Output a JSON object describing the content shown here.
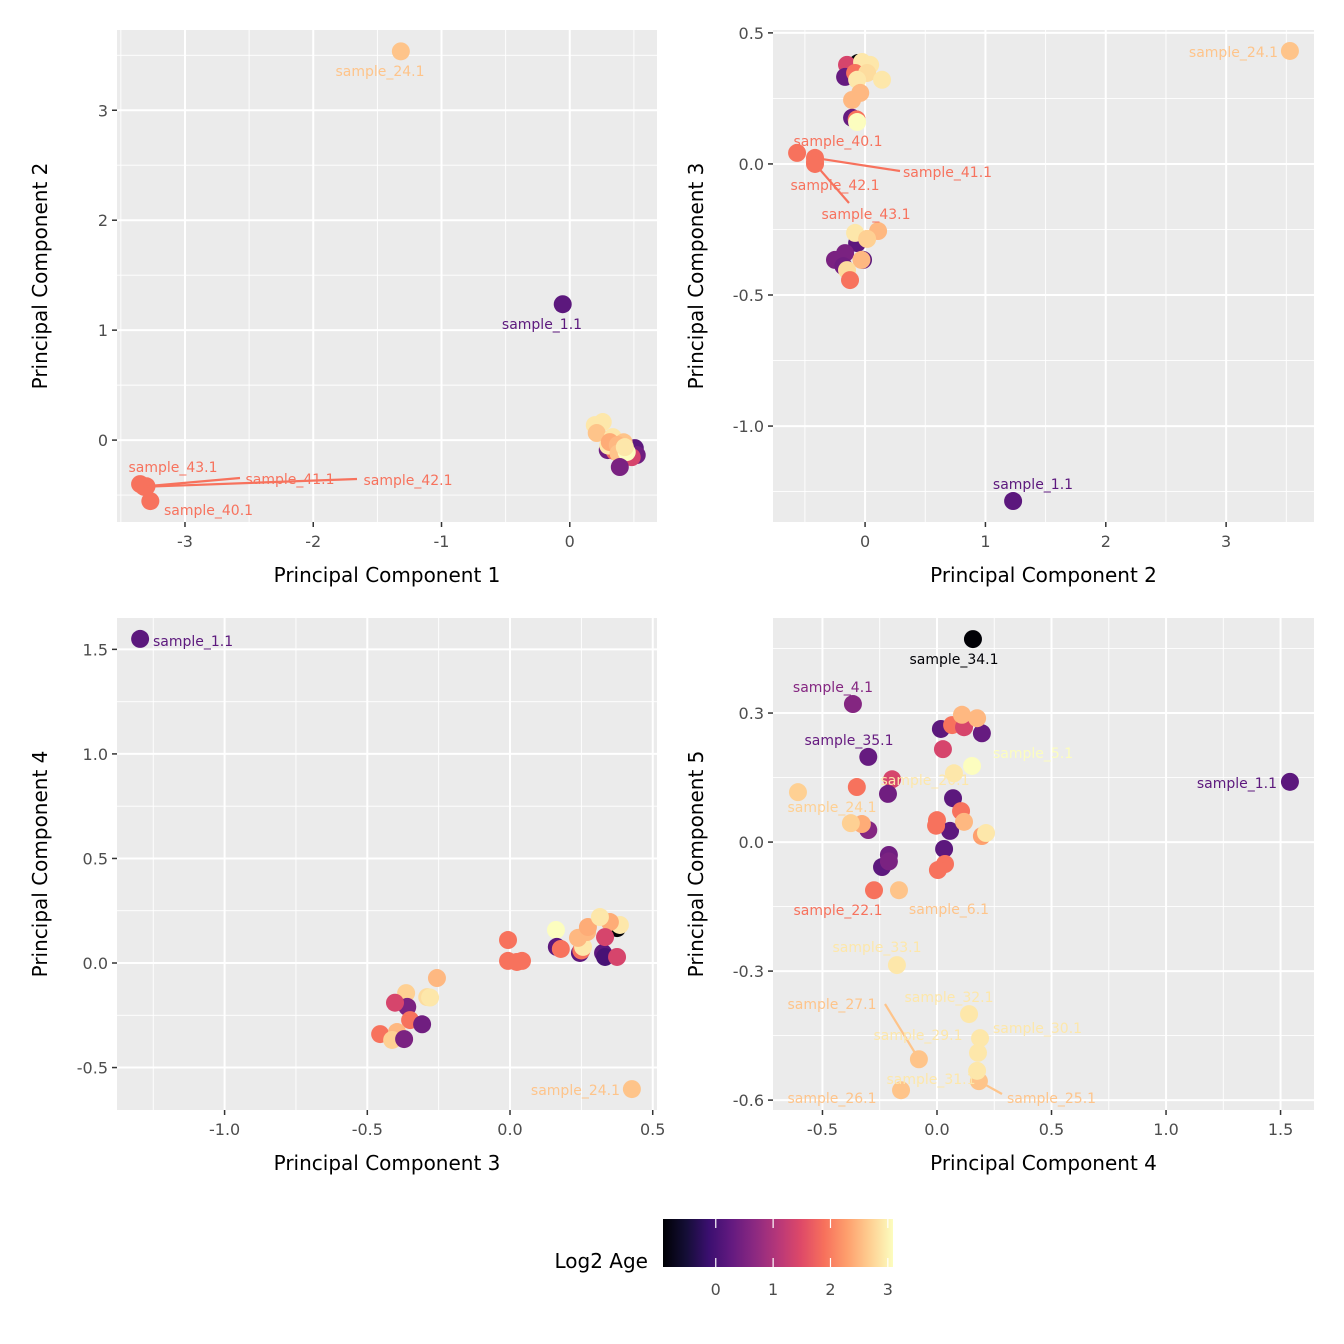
{
  "chart_data": [
    {
      "type": "scatter",
      "xlabel": "Principal Component 1",
      "ylabel": "Principal Component 2",
      "xlim": [
        -3.53,
        0.68
      ],
      "ylim": [
        -0.745,
        3.73
      ],
      "xticks": [
        -3,
        -2,
        -1,
        0
      ],
      "xtick_labels": [
        "-3",
        "-2",
        "-1",
        "0"
      ],
      "yticks": [
        0,
        1,
        2,
        3
      ],
      "ytick_labels": [
        "0",
        "1",
        "2",
        "3"
      ],
      "grid": true,
      "points": [
        {
          "x": 0.195,
          "y": 0.136,
          "age": 2.9
        },
        {
          "x": 0.257,
          "y": 0.164,
          "age": 2.9
        },
        {
          "x": 0.21,
          "y": 0.064,
          "age": 2.6
        },
        {
          "x": 0.296,
          "y": -0.091,
          "age": 0.4
        },
        {
          "x": 0.335,
          "y": 0.027,
          "age": 2.9
        },
        {
          "x": 0.507,
          "y": -0.073,
          "age": 0.2
        },
        {
          "x": 0.45,
          "y": -0.15,
          "age": 0.2
        },
        {
          "x": 0.522,
          "y": -0.136,
          "age": 0.4
        },
        {
          "x": 0.483,
          "y": -0.155,
          "age": 1.4
        },
        {
          "x": 0.35,
          "y": -0.1,
          "age": 1.9
        },
        {
          "x": 0.3,
          "y": -0.05,
          "age": 2.9
        },
        {
          "x": 0.312,
          "y": -0.018,
          "age": 2.4
        },
        {
          "x": 0.42,
          "y": -0.02,
          "age": 2.6
        },
        {
          "x": 0.374,
          "y": -0.045,
          "age": 2.5
        },
        {
          "x": 0.38,
          "y": -0.12,
          "age": 2.6
        },
        {
          "x": 0.444,
          "y": -0.109,
          "age": 3.1
        },
        {
          "x": 0.429,
          "y": -0.064,
          "age": 2.9
        },
        {
          "x": 0.39,
          "y": -0.245,
          "age": 0.5
        },
        {
          "x": -0.055,
          "y": 1.236,
          "age": 0.2,
          "label": "sample_1.1"
        },
        {
          "x": -1.317,
          "y": 3.536,
          "age": 2.6,
          "label": "sample_24.1"
        },
        {
          "x": -3.35,
          "y": -0.4,
          "age": 1.9,
          "label": "sample_43.1"
        },
        {
          "x": -3.3,
          "y": -0.42,
          "age": 1.9,
          "label": "sample_41.1"
        },
        {
          "x": -3.32,
          "y": -0.425,
          "age": 1.9,
          "label": "sample_42.1"
        },
        {
          "x": -3.27,
          "y": -0.555,
          "age": 1.9,
          "label": "sample_40.1"
        }
      ]
    },
    {
      "type": "scatter",
      "xlabel": "Principal Component 2",
      "ylabel": "Principal Component 3",
      "xlim": [
        -0.765,
        3.73
      ],
      "ylim": [
        -1.366,
        0.511
      ],
      "xticks": [
        0,
        1,
        2,
        3
      ],
      "xtick_labels": [
        "0",
        "1",
        "2",
        "3"
      ],
      "yticks": [
        0.5,
        0.0,
        -0.5,
        -1.0
      ],
      "ytick_labels": [
        "0.5",
        "0.0",
        "-0.5",
        "-1.0"
      ],
      "grid": true,
      "points": [
        {
          "x": -0.058,
          "y": 0.385,
          "age": -0.9
        },
        {
          "x": -0.15,
          "y": 0.378,
          "age": 1.4
        },
        {
          "x": -0.025,
          "y": 0.389,
          "age": 2.9
        },
        {
          "x": 0.042,
          "y": 0.378,
          "age": 2.9
        },
        {
          "x": -0.166,
          "y": 0.332,
          "age": 0.3
        },
        {
          "x": -0.083,
          "y": 0.347,
          "age": 1.9
        },
        {
          "x": 0.017,
          "y": 0.347,
          "age": 2.8
        },
        {
          "x": 0.141,
          "y": 0.321,
          "age": 2.9
        },
        {
          "x": -0.066,
          "y": 0.321,
          "age": 2.9
        },
        {
          "x": -0.04,
          "y": 0.271,
          "age": 2.5
        },
        {
          "x": -0.108,
          "y": 0.244,
          "age": 2.5
        },
        {
          "x": -0.108,
          "y": 0.176,
          "age": 0.3
        },
        {
          "x": -0.07,
          "y": 0.17,
          "age": 1.9
        },
        {
          "x": -0.066,
          "y": 0.16,
          "age": 3.1
        },
        {
          "x": -0.066,
          "y": -0.302,
          "age": 0.2
        },
        {
          "x": -0.017,
          "y": -0.366,
          "age": 0.2
        },
        {
          "x": -0.083,
          "y": -0.263,
          "age": 2.9
        },
        {
          "x": 0.108,
          "y": -0.256,
          "age": 2.5
        },
        {
          "x": 0.017,
          "y": -0.286,
          "age": 2.7
        },
        {
          "x": -0.166,
          "y": -0.34,
          "age": 0.5
        },
        {
          "x": -0.25,
          "y": -0.366,
          "age": 0.5
        },
        {
          "x": -0.03,
          "y": -0.366,
          "age": 2.5
        },
        {
          "x": -0.18,
          "y": -0.39,
          "age": 0.4
        },
        {
          "x": -0.15,
          "y": -0.405,
          "age": 2.8
        },
        {
          "x": -0.125,
          "y": -0.443,
          "age": 1.9
        },
        {
          "x": 1.23,
          "y": -1.286,
          "age": 0.2,
          "label": "sample_1.1"
        },
        {
          "x": 3.53,
          "y": 0.431,
          "age": 2.6,
          "label": "sample_24.1"
        },
        {
          "x": -0.565,
          "y": 0.042,
          "age": 1.9,
          "label": "sample_40.1"
        },
        {
          "x": -0.416,
          "y": 0.023,
          "age": 1.9,
          "label": "sample_41.1"
        },
        {
          "x": -0.416,
          "y": 0.0,
          "age": 1.9,
          "label": "sample_43.1"
        },
        {
          "x": -0.416,
          "y": 0.008,
          "age": 1.9,
          "label": "sample_42.1"
        }
      ]
    },
    {
      "type": "scatter",
      "xlabel": "Principal Component 3",
      "ylabel": "Principal Component 4",
      "xlim": [
        -1.377,
        0.515
      ],
      "ylim": [
        -0.703,
        1.65
      ],
      "xticks": [
        -1.0,
        -0.5,
        0.0,
        0.5
      ],
      "xtick_labels": [
        "-1.0",
        "-0.5",
        "0.0",
        "0.5"
      ],
      "yticks": [
        1.5,
        1.0,
        0.5,
        0.0,
        -0.5
      ],
      "ytick_labels": [
        "1.5",
        "1.0",
        "0.5",
        "0.0",
        "-0.5"
      ],
      "grid": true,
      "points": [
        {
          "x": -0.256,
          "y": -0.072,
          "age": 2.5
        },
        {
          "x": -0.364,
          "y": -0.144,
          "age": 2.7
        },
        {
          "x": -0.29,
          "y": -0.163,
          "age": 2.8
        },
        {
          "x": -0.28,
          "y": -0.165,
          "age": 2.9
        },
        {
          "x": -0.36,
          "y": -0.21,
          "age": 0.5
        },
        {
          "x": -0.403,
          "y": -0.19,
          "age": 1.4
        },
        {
          "x": -0.35,
          "y": -0.273,
          "age": 1.9
        },
        {
          "x": -0.308,
          "y": -0.293,
          "age": 0.4
        },
        {
          "x": -0.455,
          "y": -0.34,
          "age": 1.9
        },
        {
          "x": -0.396,
          "y": -0.33,
          "age": 2.5
        },
        {
          "x": -0.413,
          "y": -0.368,
          "age": 2.7
        },
        {
          "x": -0.371,
          "y": -0.364,
          "age": 0.5
        },
        {
          "x": -0.007,
          "y": 0.11,
          "age": 1.9
        },
        {
          "x": -0.007,
          "y": 0.01,
          "age": 1.9
        },
        {
          "x": 0.024,
          "y": 0.005,
          "age": 1.9
        },
        {
          "x": 0.042,
          "y": 0.01,
          "age": 1.9
        },
        {
          "x": 0.161,
          "y": 0.158,
          "age": 3.1
        },
        {
          "x": 0.164,
          "y": 0.077,
          "age": 0.2
        },
        {
          "x": 0.178,
          "y": 0.067,
          "age": 1.9
        },
        {
          "x": 0.245,
          "y": 0.048,
          "age": 0.2
        },
        {
          "x": 0.25,
          "y": 0.06,
          "age": 1.9
        },
        {
          "x": 0.256,
          "y": 0.077,
          "age": 2.9
        },
        {
          "x": 0.375,
          "y": 0.167,
          "age": -0.9
        },
        {
          "x": 0.385,
          "y": 0.182,
          "age": 2.9
        },
        {
          "x": 0.238,
          "y": 0.12,
          "age": 2.5
        },
        {
          "x": 0.27,
          "y": 0.148,
          "age": 2.5
        },
        {
          "x": 0.273,
          "y": 0.172,
          "age": 2.4
        },
        {
          "x": 0.35,
          "y": 0.196,
          "age": 2.4
        },
        {
          "x": 0.315,
          "y": 0.22,
          "age": 2.9
        },
        {
          "x": 0.326,
          "y": 0.048,
          "age": 0.2
        },
        {
          "x": 0.333,
          "y": 0.029,
          "age": 0.0
        },
        {
          "x": 0.333,
          "y": 0.124,
          "age": 1.4
        },
        {
          "x": 0.375,
          "y": 0.029,
          "age": 1.4
        },
        {
          "x": -1.296,
          "y": 1.55,
          "age": 0.2,
          "label": "sample_1.1"
        },
        {
          "x": 0.427,
          "y": -0.603,
          "age": 2.6,
          "label": "sample_24.1"
        }
      ]
    },
    {
      "type": "scatter",
      "xlabel": "Principal Component 4",
      "ylabel": "Principal Component 5",
      "xlim": [
        -0.716,
        1.646
      ],
      "ylim": [
        -0.623,
        0.521
      ],
      "xticks": [
        -0.5,
        0.0,
        0.5,
        1.0,
        1.5
      ],
      "xtick_labels": [
        "-0.5",
        "0.0",
        "0.5",
        "1.0",
        "1.5"
      ],
      "yticks": [
        0.3,
        0.0,
        -0.3,
        -0.6
      ],
      "ytick_labels": [
        "0.3",
        "0.0",
        "-0.3",
        "-0.6"
      ],
      "grid": true,
      "points": [
        {
          "x": 0.017,
          "y": 0.263,
          "age": 0.2
        },
        {
          "x": 0.066,
          "y": 0.272,
          "age": 1.9
        },
        {
          "x": 0.118,
          "y": 0.267,
          "age": 1.4
        },
        {
          "x": 0.196,
          "y": 0.253,
          "age": 0.3
        },
        {
          "x": 0.109,
          "y": 0.296,
          "age": 2.5
        },
        {
          "x": 0.175,
          "y": 0.288,
          "age": 2.5
        },
        {
          "x": 0.026,
          "y": 0.216,
          "age": 1.4
        },
        {
          "x": -0.196,
          "y": 0.146,
          "age": 1.4
        },
        {
          "x": -0.35,
          "y": 0.128,
          "age": 1.9
        },
        {
          "x": -0.214,
          "y": 0.112,
          "age": 0.4
        },
        {
          "x": 0.07,
          "y": 0.102,
          "age": 0.2
        },
        {
          "x": 0.105,
          "y": 0.072,
          "age": 1.9
        },
        {
          "x": 0.0,
          "y": 0.051,
          "age": 1.9
        },
        {
          "x": 0.057,
          "y": 0.026,
          "age": 0.2
        },
        {
          "x": -0.004,
          "y": 0.038,
          "age": 1.9
        },
        {
          "x": 0.118,
          "y": 0.047,
          "age": 2.5
        },
        {
          "x": 0.196,
          "y": 0.014,
          "age": 2.3
        },
        {
          "x": 0.214,
          "y": 0.021,
          "age": 2.9
        },
        {
          "x": 0.031,
          "y": -0.016,
          "age": 0.2
        },
        {
          "x": 0.035,
          "y": -0.051,
          "age": 1.9
        },
        {
          "x": 0.004,
          "y": -0.065,
          "age": 1.9
        },
        {
          "x": -0.3,
          "y": 0.028,
          "age": 0.6
        },
        {
          "x": -0.328,
          "y": 0.042,
          "age": 2.4
        },
        {
          "x": -0.376,
          "y": 0.044,
          "age": 2.7
        },
        {
          "x": -0.24,
          "y": -0.058,
          "age": 0.2
        },
        {
          "x": -0.21,
          "y": -0.03,
          "age": 0.4
        },
        {
          "x": -0.21,
          "y": -0.045,
          "age": 0.5
        },
        {
          "x": 0.157,
          "y": 0.472,
          "age": -0.9,
          "label": "sample_34.1"
        },
        {
          "x": -0.367,
          "y": 0.321,
          "age": 0.6,
          "label": "sample_4.1"
        },
        {
          "x": -0.3,
          "y": 0.198,
          "age": 0.3,
          "label": "sample_35.1"
        },
        {
          "x": 0.153,
          "y": 0.177,
          "age": 3.1,
          "label": "sample_5.1"
        },
        {
          "x": 0.074,
          "y": 0.16,
          "age": 2.9,
          "label": "sample_20.1"
        },
        {
          "x": -0.607,
          "y": 0.116,
          "age": 2.7,
          "label": "sample_24.1"
        },
        {
          "x": -0.275,
          "y": -0.112,
          "age": 1.9,
          "label": "sample_22.1"
        },
        {
          "x": -0.166,
          "y": -0.112,
          "age": 2.6,
          "label": "sample_6.1"
        },
        {
          "x": -0.175,
          "y": -0.286,
          "age": 2.9,
          "label": "sample_33.1"
        },
        {
          "x": 0.14,
          "y": -0.4,
          "age": 2.9,
          "label": "sample_32.1"
        },
        {
          "x": -0.079,
          "y": -0.505,
          "age": 2.6,
          "label": "sample_27.1"
        },
        {
          "x": 0.188,
          "y": -0.456,
          "age": 2.9,
          "label": "sample_30.1"
        },
        {
          "x": 0.179,
          "y": -0.49,
          "age": 2.9,
          "label": "sample_29.1"
        },
        {
          "x": 0.183,
          "y": -0.556,
          "age": 2.6,
          "label": "sample_25.1"
        },
        {
          "x": 0.175,
          "y": -0.532,
          "age": 2.9,
          "label": "sample_31.1"
        },
        {
          "x": -0.157,
          "y": -0.577,
          "age": 2.6,
          "label": "sample_26.1"
        },
        {
          "x": 1.541,
          "y": 0.14,
          "age": 0.2,
          "label": "sample_1.1"
        }
      ]
    }
  ],
  "legend": {
    "title": "Log2 Age",
    "colormap": "magma",
    "range": [
      -0.92,
      3.09
    ],
    "ticks": [
      0,
      1,
      2,
      3
    ],
    "tick_labels": [
      "0",
      "1",
      "2",
      "3"
    ],
    "placement": "bottom"
  },
  "colors": {
    "panel_background": "#ebebeb",
    "grid": "#ffffff",
    "magma_stops": [
      "#000004",
      "#140e36",
      "#3b0f70",
      "#641a80",
      "#8c2981",
      "#b73779",
      "#de4968",
      "#f7705c",
      "#fe9f6d",
      "#fecf92",
      "#fcfdbf"
    ]
  }
}
